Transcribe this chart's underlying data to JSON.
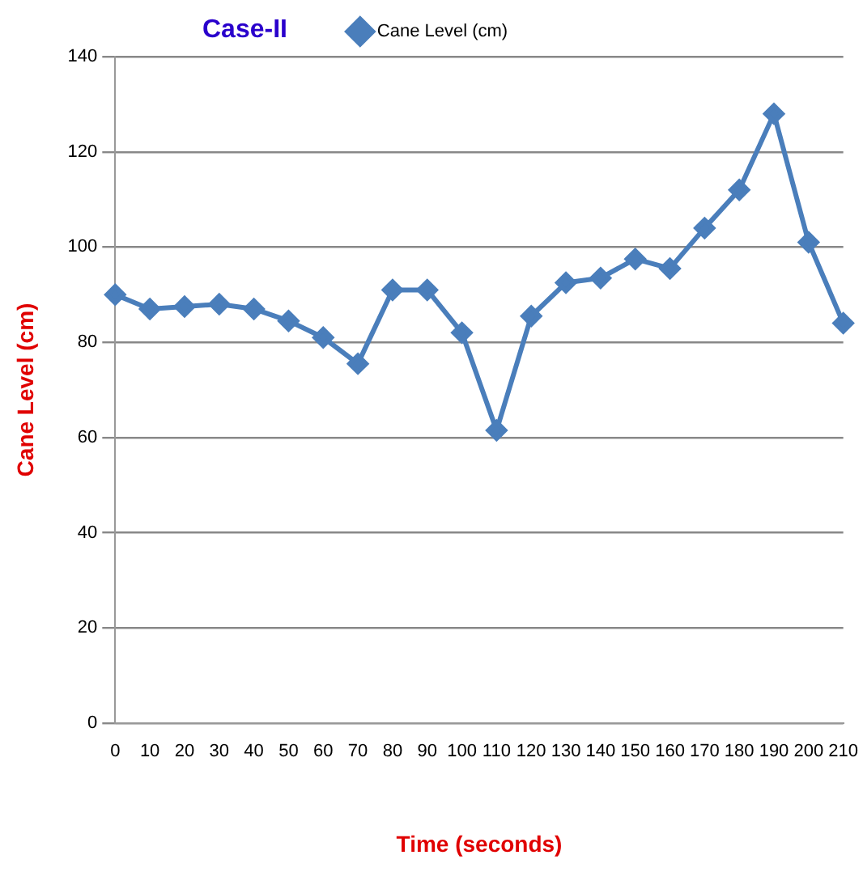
{
  "chart_data": {
    "type": "line",
    "title": "Case-II",
    "xlabel": "Time (seconds)",
    "ylabel": "Cane Level (cm)",
    "categories": [
      "0",
      "10",
      "20",
      "30",
      "40",
      "50",
      "60",
      "70",
      "80",
      "90",
      "100",
      "110",
      "120",
      "130",
      "140",
      "150",
      "160",
      "170",
      "180",
      "190",
      "200",
      "210"
    ],
    "series": [
      {
        "name": "Cane Level (cm)",
        "color": "#4a7ebb",
        "values": [
          90,
          87,
          87.5,
          88,
          87,
          84.5,
          81,
          75.5,
          91,
          91,
          82,
          61.5,
          85.5,
          92.5,
          93.5,
          97.5,
          95.5,
          104,
          112,
          128,
          101,
          84
        ]
      }
    ],
    "ylim": [
      0,
      140
    ],
    "yticks": [
      0,
      20,
      40,
      60,
      80,
      100,
      120,
      140
    ],
    "grid": "y",
    "legend": "top",
    "marker": "diamond",
    "line_style": "solid"
  }
}
